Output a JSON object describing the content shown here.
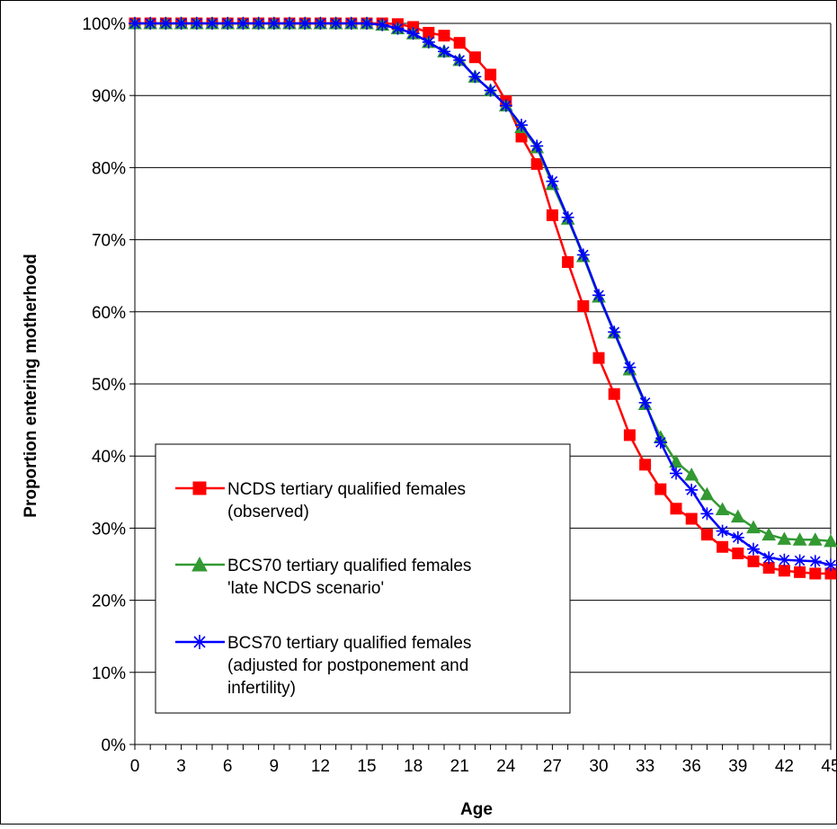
{
  "chart_data": {
    "type": "line",
    "title": "",
    "xlabel": "Age",
    "ylabel": "Proportion entering motherhood",
    "xlim": [
      0,
      45
    ],
    "ylim": [
      0,
      100
    ],
    "grid": "horizontal",
    "x_ticks": [
      0,
      3,
      6,
      9,
      12,
      15,
      18,
      21,
      24,
      27,
      30,
      33,
      36,
      39,
      42,
      45
    ],
    "y_ticks": [
      "0%",
      "10%",
      "20%",
      "30%",
      "40%",
      "50%",
      "60%",
      "70%",
      "80%",
      "90%",
      "100%"
    ],
    "x": [
      0,
      1,
      2,
      3,
      4,
      5,
      6,
      7,
      8,
      9,
      10,
      11,
      12,
      13,
      14,
      15,
      16,
      17,
      18,
      19,
      20,
      21,
      22,
      23,
      24,
      25,
      26,
      27,
      28,
      29,
      30,
      31,
      32,
      33,
      34,
      35,
      36,
      37,
      38,
      39,
      40,
      41,
      42,
      43,
      44,
      45
    ],
    "legend_position": "bottom-left",
    "series": [
      {
        "name": "NCDS tertiary qualified females (observed)",
        "legend_lines": [
          "NCDS tertiary qualified females",
          "(observed)"
        ],
        "color": "#ff0000",
        "marker": "square",
        "values": [
          100,
          100,
          100,
          100,
          100,
          100,
          100,
          100,
          100,
          100,
          100,
          100,
          100,
          100,
          100,
          100,
          100,
          99.9,
          99.5,
          98.7,
          98.3,
          97.3,
          95.3,
          92.9,
          89.2,
          84.3,
          80.5,
          73.4,
          66.9,
          60.8,
          53.6,
          48.6,
          42.9,
          38.8,
          35.4,
          32.7,
          31.3,
          29.1,
          27.4,
          26.5,
          25.4,
          24.5,
          24.1,
          23.9,
          23.7,
          23.7
        ]
      },
      {
        "name": "BCS70 tertiary qualified females 'late NCDS scenario'",
        "legend_lines": [
          "BCS70 tertiary qualified females",
          "'late NCDS scenario'"
        ],
        "color": "#339933",
        "marker": "triangle",
        "values": [
          100,
          100,
          100,
          100,
          100,
          100,
          100,
          100,
          100,
          100,
          100,
          100,
          100,
          100,
          100,
          100,
          99.8,
          99.3,
          98.6,
          97.4,
          96.1,
          94.9,
          92.6,
          90.7,
          88.6,
          85.6,
          82.8,
          77.7,
          72.9,
          67.7,
          62.1,
          57.1,
          52.0,
          47.2,
          42.6,
          39.2,
          37.4,
          34.7,
          32.6,
          31.6,
          30.1,
          29.1,
          28.5,
          28.4,
          28.4,
          28.2
        ]
      },
      {
        "name": "BCS70 tertiary qualified females (adjusted for postponement and infertility)",
        "legend_lines": [
          "BCS70 tertiary qualified females",
          "(adjusted for postponement and",
          "infertility)"
        ],
        "color": "#0000ff",
        "marker": "asterisk",
        "values": [
          100,
          100,
          100,
          100,
          100,
          100,
          100,
          100,
          100,
          100,
          100,
          100,
          100,
          100,
          100,
          100,
          99.8,
          99.3,
          98.6,
          97.4,
          96.1,
          94.9,
          92.6,
          90.7,
          88.6,
          85.9,
          83.0,
          78.1,
          73.1,
          67.9,
          62.3,
          57.2,
          52.3,
          47.4,
          41.9,
          37.6,
          35.3,
          32.0,
          29.6,
          28.7,
          27.1,
          25.9,
          25.6,
          25.5,
          25.4,
          24.9
        ]
      }
    ]
  }
}
